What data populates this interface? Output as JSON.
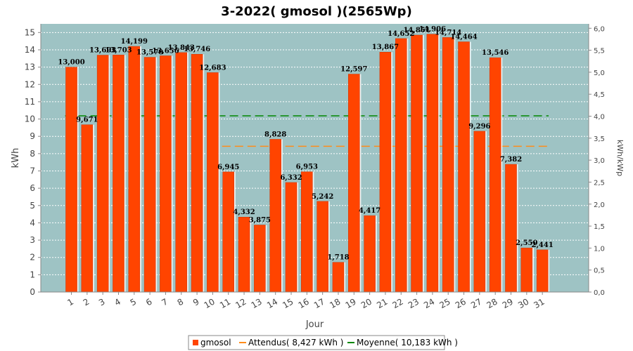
{
  "chart_data": {
    "type": "bar",
    "title": "3-2022( gmosol )(2565Wp)",
    "xlabel": "Jour",
    "ylabel": "kWh",
    "y2label": "kWh/kWp",
    "ylim": [
      0,
      15.5
    ],
    "y2lim": [
      0,
      6.1
    ],
    "yticks": [
      0,
      1,
      2,
      3,
      4,
      5,
      6,
      7,
      8,
      9,
      10,
      11,
      12,
      13,
      14,
      15
    ],
    "y2ticks": [
      "0,0",
      "0,5",
      "1,0",
      "1,5",
      "2,0",
      "2,5",
      "3,0",
      "3,5",
      "4,0",
      "4,5",
      "5,0",
      "5,5",
      "6,0"
    ],
    "categories": [
      "1",
      "2",
      "3",
      "4",
      "5",
      "6",
      "7",
      "8",
      "9",
      "10",
      "11",
      "12",
      "13",
      "14",
      "15",
      "16",
      "17",
      "18",
      "19",
      "20",
      "21",
      "22",
      "23",
      "24",
      "25",
      "26",
      "27",
      "28",
      "29",
      "30",
      "31"
    ],
    "series": [
      {
        "name": "gmosol",
        "color": "#ff4400",
        "values": [
          13.0,
          9.671,
          13.693,
          13.703,
          14.199,
          13.57,
          13.656,
          13.843,
          13.746,
          12.683,
          6.945,
          4.332,
          3.875,
          8.828,
          6.332,
          6.953,
          5.242,
          1.718,
          12.597,
          4.417,
          13.867,
          14.652,
          14.851,
          14.906,
          14.714,
          14.464,
          9.296,
          13.546,
          7.382,
          2.55,
          2.441
        ],
        "labels": [
          "13,000",
          "9,671",
          "13,693",
          "13,703",
          "14,199",
          "13,570",
          "13,656",
          "13,843",
          "13,746",
          "12,683",
          "6,945",
          "4,332",
          "3,875",
          "8,828",
          "6,332",
          "6,953",
          "5,242",
          "1,718",
          "12,597",
          "4,417",
          "13,867",
          "14,652",
          "14,851",
          "14,906",
          "14,714",
          "14,464",
          "9,296",
          "13,546",
          "7,382",
          "2,550",
          "2,441"
        ]
      }
    ],
    "reference_lines": [
      {
        "name": "Attendus",
        "value": 8.427,
        "color": "#ff8c1a",
        "from_day": 11,
        "to_day": 31
      },
      {
        "name": "Moyenne",
        "value": 10.183,
        "color": "#008800",
        "from_day": 1,
        "to_day": 31
      }
    ],
    "legend": {
      "placement": "bottom",
      "entries": [
        "gmosol",
        "Attendus( 8,427 kWh )",
        "Moyenne( 10,183 kWh )"
      ]
    },
    "background": "#9ec3c4",
    "grid": true
  }
}
